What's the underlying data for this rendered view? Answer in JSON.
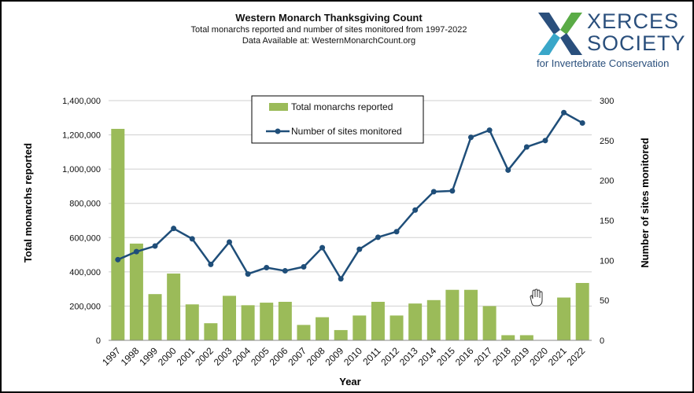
{
  "header": {
    "title": "Western Monarch Thanksgiving Count",
    "subtitle": "Total monarchs reported and number of sites monitored from 1997-2022",
    "source": "Data Available at: WesternMonarchCount.org"
  },
  "logo": {
    "line1": "XERCES",
    "line2": "SOCIETY",
    "tagline": "for Invertebrate Conservation",
    "colors": [
      "#2a4f7c",
      "#5aab46",
      "#3aa7c9"
    ]
  },
  "chart_data": {
    "type": "bar",
    "xlabel": "Year",
    "categories": [
      "1997",
      "1998",
      "1999",
      "2000",
      "2001",
      "2002",
      "2003",
      "2004",
      "2005",
      "2006",
      "2007",
      "2008",
      "2009",
      "2010",
      "2011",
      "2012",
      "2013",
      "2014",
      "2015",
      "2016",
      "2017",
      "2018",
      "2019",
      "2020",
      "2021",
      "2022"
    ],
    "series": [
      {
        "name": "Total monarchs reported",
        "type": "bar",
        "axis": "left",
        "color": "#9bbb59",
        "values": [
          1235000,
          565000,
          270000,
          390000,
          210000,
          100000,
          260000,
          205000,
          220000,
          225000,
          90000,
          135000,
          60000,
          145000,
          225000,
          145000,
          215000,
          235000,
          295000,
          295000,
          200000,
          30000,
          30000,
          2000,
          250000,
          335000
        ]
      },
      {
        "name": "Number of sites monitored",
        "type": "line",
        "axis": "right",
        "color": "#1f4e79",
        "values": [
          101,
          111,
          118,
          140,
          127,
          95,
          123,
          83,
          91,
          87,
          92,
          116,
          77,
          114,
          129,
          136,
          163,
          186,
          187,
          254,
          263,
          213,
          242,
          250,
          285,
          272
        ]
      }
    ],
    "left_axis": {
      "label": "Total monarchs reported",
      "ylim": [
        0,
        1400000
      ],
      "ticks": [
        "0",
        "200,000",
        "400,000",
        "600,000",
        "800,000",
        "1,000,000",
        "1,200,000",
        "1,400,000"
      ]
    },
    "right_axis": {
      "label": "Number of sites monitored",
      "ylim": [
        0,
        300
      ],
      "ticks": [
        "0",
        "50",
        "100",
        "150",
        "200",
        "250",
        "300"
      ]
    },
    "grid": true,
    "legend_position": "top-center"
  }
}
